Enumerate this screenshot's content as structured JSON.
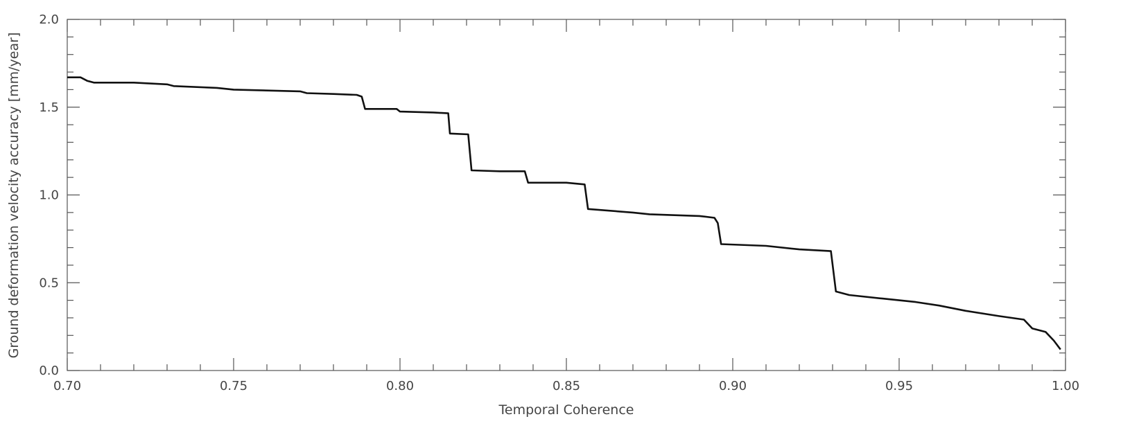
{
  "chart_data": {
    "type": "line",
    "title": "",
    "xlabel": "Temporal Coherence",
    "ylabel": "Ground deformation velocity accuracy [mm/year]",
    "xlim": [
      0.7,
      1.0
    ],
    "ylim": [
      0.0,
      2.0
    ],
    "x_ticks": [
      0.7,
      0.75,
      0.8,
      0.85,
      0.9,
      0.95,
      1.0
    ],
    "x_tick_labels": [
      "0.70",
      "0.75",
      "0.80",
      "0.85",
      "0.90",
      "0.95",
      "1.00"
    ],
    "y_ticks": [
      0.0,
      0.5,
      1.0,
      1.5,
      2.0
    ],
    "y_tick_labels": [
      "0.0",
      "0.5",
      "1.0",
      "1.5",
      "2.0"
    ],
    "x_minor_step": 0.01,
    "y_minor_step": 0.1,
    "grid": false,
    "series": [
      {
        "color": "#111111",
        "points": [
          [
            0.7,
            1.67
          ],
          [
            0.704,
            1.67
          ],
          [
            0.706,
            1.65
          ],
          [
            0.708,
            1.64
          ],
          [
            0.72,
            1.64
          ],
          [
            0.73,
            1.63
          ],
          [
            0.732,
            1.62
          ],
          [
            0.745,
            1.61
          ],
          [
            0.75,
            1.6
          ],
          [
            0.77,
            1.59
          ],
          [
            0.772,
            1.58
          ],
          [
            0.78,
            1.575
          ],
          [
            0.787,
            1.57
          ],
          [
            0.7885,
            1.56
          ],
          [
            0.7895,
            1.49
          ],
          [
            0.799,
            1.49
          ],
          [
            0.8,
            1.475
          ],
          [
            0.81,
            1.47
          ],
          [
            0.8145,
            1.465
          ],
          [
            0.815,
            1.35
          ],
          [
            0.8205,
            1.345
          ],
          [
            0.8215,
            1.14
          ],
          [
            0.83,
            1.135
          ],
          [
            0.8375,
            1.135
          ],
          [
            0.8385,
            1.07
          ],
          [
            0.85,
            1.07
          ],
          [
            0.8555,
            1.06
          ],
          [
            0.8565,
            0.92
          ],
          [
            0.87,
            0.9
          ],
          [
            0.875,
            0.89
          ],
          [
            0.89,
            0.88
          ],
          [
            0.8945,
            0.87
          ],
          [
            0.8955,
            0.84
          ],
          [
            0.8965,
            0.72
          ],
          [
            0.91,
            0.71
          ],
          [
            0.92,
            0.69
          ],
          [
            0.9295,
            0.68
          ],
          [
            0.931,
            0.45
          ],
          [
            0.935,
            0.43
          ],
          [
            0.945,
            0.41
          ],
          [
            0.955,
            0.39
          ],
          [
            0.962,
            0.37
          ],
          [
            0.97,
            0.34
          ],
          [
            0.98,
            0.31
          ],
          [
            0.9875,
            0.29
          ],
          [
            0.99,
            0.24
          ],
          [
            0.994,
            0.22
          ],
          [
            0.9965,
            0.17
          ],
          [
            0.9985,
            0.12
          ]
        ]
      }
    ]
  }
}
